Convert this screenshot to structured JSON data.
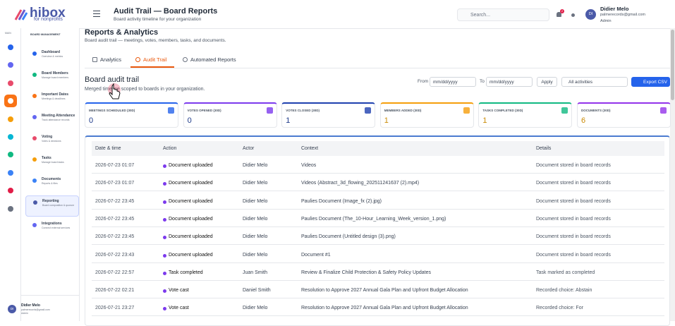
{
  "logo": {
    "name": "hibox",
    "tagline": "for nonprofits"
  },
  "rail": {
    "label": "MAIN"
  },
  "sidebar": {
    "section": "BOARD MANAGEMENT",
    "items": [
      {
        "label": "Dashboard",
        "sub": "Overview & metrics"
      },
      {
        "label": "Board Members",
        "sub": "Manage board members"
      },
      {
        "label": "Important Dates",
        "sub": "Meetings & deadlines"
      },
      {
        "label": "Meeting Attendance",
        "sub": "Track attendance records"
      },
      {
        "label": "Voting",
        "sub": "Votes & decisions"
      },
      {
        "label": "Tasks",
        "sub": "Manage board tasks"
      },
      {
        "label": "Documents",
        "sub": "Reports & files"
      },
      {
        "label": "Reporting",
        "sub": "Board composition & quorum"
      },
      {
        "label": "Integrations",
        "sub": "Connect external services"
      }
    ],
    "user": {
      "initials": "DI",
      "name": "Didier Melo",
      "email": "palmerecords@gmail.com",
      "role": "Admin"
    }
  },
  "header": {
    "title": "Audit Trail — Board Reports",
    "subtitle": "Board activity timeline for your organization",
    "search": "Search...",
    "badge": "2",
    "user": {
      "initials": "DI",
      "name": "Didier Melo",
      "email": "palmerecords@gmail.com",
      "role": "Admin"
    }
  },
  "page": {
    "title": "Reports & Analytics",
    "subtitle": "Board audit trail — meetings, votes, members, tasks, and documents."
  },
  "tabs": [
    "Analytics",
    "Audit Trail",
    "Automated Reports"
  ],
  "section": {
    "title": "Board audit trail",
    "subtitle": "Merged timeline scoped to boards in your organization."
  },
  "filters": {
    "from": "From",
    "from_placeholder": "mm/dd/yyyy",
    "to": "To",
    "to_placeholder": "mm/dd/yyyy",
    "apply": "Apply",
    "activity": "All activities",
    "export": "Export CSV"
  },
  "stats": [
    {
      "label": "MEETINGS SCHEDULED (30D)",
      "value": 0
    },
    {
      "label": "VOTES OPENED (30D)",
      "value": 0
    },
    {
      "label": "VOTES CLOSED (30D)",
      "value": 1
    },
    {
      "label": "MEMBERS ADDED (30D)",
      "value": 1
    },
    {
      "label": "TASKS COMPLETED (30D)",
      "value": 1
    },
    {
      "label": "DOCUMENTS (30D)",
      "value": 6
    }
  ],
  "table": {
    "columns": [
      "Date & time",
      "Action",
      "Actor",
      "Context",
      "Details"
    ],
    "rows": [
      [
        "2026-07-23 01:07",
        "Document uploaded",
        "Didier Melo",
        "Videos",
        "Document stored in board records"
      ],
      [
        "2026-07-23 01:07",
        "Document uploaded",
        "Didier Melo",
        "Videos (Abstract_3d_flowing_202511241637 (2).mp4)",
        "Document stored in board records"
      ],
      [
        "2026-07-22 23:45",
        "Document uploaded",
        "Didier Melo",
        "Paulies Document (Image_fx (2).jpg)",
        "Document stored in board records"
      ],
      [
        "2026-07-22 23:45",
        "Document uploaded",
        "Didier Melo",
        "Paulies Document (The_10-Hour_Learning_Week_version_1.png)",
        "Document stored in board records"
      ],
      [
        "2026-07-22 23:45",
        "Document uploaded",
        "Didier Melo",
        "Paulies Document (Untitled design (3).png)",
        "Document stored in board records"
      ],
      [
        "2026-07-22 23:43",
        "Document uploaded",
        "Didier Melo",
        "Document #1",
        "Document stored in board records"
      ],
      [
        "2026-07-22 22:57",
        "Task completed",
        "Juan Smith",
        "Review & Finalize Child Protection & Safety Policy Updates",
        "Task marked as completed"
      ],
      [
        "2026-07-22 02:21",
        "Vote cast",
        "Daniel Smith",
        "Resolution to Approve 2027 Annual Gala Plan and Upfront Budget Allocation",
        "Recorded choice: Abstain"
      ],
      [
        "2026-07-21 23:27",
        "Vote cast",
        "Didier Melo",
        "Resolution to Approve 2027 Annual Gala Plan and Upfront Budget Allocation",
        "Recorded choice: For"
      ]
    ]
  }
}
